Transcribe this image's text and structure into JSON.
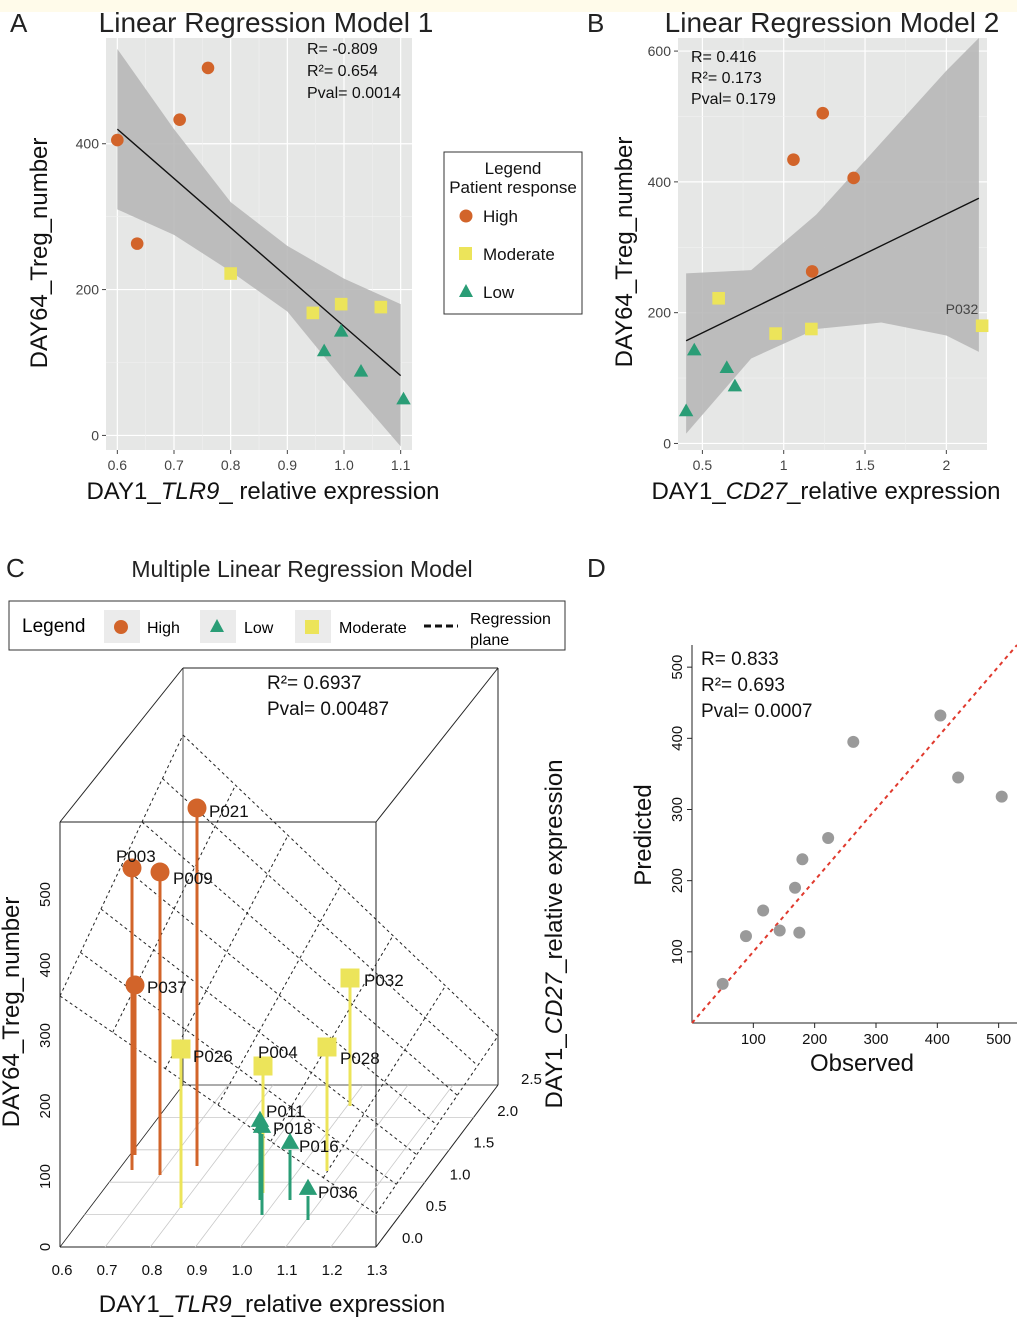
{
  "colors": {
    "high": "#d2642a",
    "moderate": "#ece45a",
    "low": "#2a9d76",
    "panel_bg": "#e6e7e6",
    "band": "#b4b4b4",
    "grey_point": "#9a9a9a",
    "identity_line": "#e03a2e",
    "top_strip": "#fffbea"
  },
  "panelA": {
    "letter": "A",
    "title": "Linear Regression Model 1",
    "stats": [
      "R= -0.809",
      "R²= 0.654",
      "Pval= 0.0014"
    ],
    "xlabel_pre": "DAY1_",
    "xlabel_gene": "TLR9",
    "xlabel_post": "_ relative expression",
    "ylabel": "DAY64_Treg_number"
  },
  "panelB": {
    "letter": "B",
    "title": "Linear Regression Model 2",
    "stats": [
      "R= 0.416",
      "R²= 0.173",
      "Pval= 0.179"
    ],
    "xlabel_pre": "DAY1_",
    "xlabel_gene": "CD27",
    "xlabel_post": "_relative expression",
    "ylabel": "DAY64_Treg_number",
    "point_label": "P032"
  },
  "legendAB": {
    "title1": "Legend",
    "title2": "Patient response",
    "items": [
      "High",
      "Moderate",
      "Low"
    ]
  },
  "panelC": {
    "letter": "C",
    "title": "Multiple Linear Regression Model",
    "stats": [
      "R²= 0.6937",
      "Pval= 0.00487"
    ],
    "legend": {
      "title": "Legend",
      "high": "High",
      "low": "Low",
      "moderate": "Moderate",
      "plane1": "Regression",
      "plane2": "plane"
    },
    "xlabel_pre": "DAY1_",
    "xlabel_gene": "TLR9",
    "xlabel_post": "_relative expression",
    "ylabel": "DAY64_Treg_number",
    "zlabel_pre": "DAY1_",
    "zlabel_gene": "CD27",
    "zlabel_post": "_relative expression"
  },
  "panelD": {
    "letter": "D",
    "stats": [
      "R= 0.833",
      "R²= 0.693",
      "Pval= 0.0007"
    ],
    "xlabel": "Observed",
    "ylabel": "Predicted"
  },
  "chart_data": [
    {
      "type": "scatter",
      "panel": "A",
      "title": "Linear Regression Model 1",
      "xlabel": "DAY1_TLR9_ relative expression",
      "ylabel": "DAY64_Treg_number",
      "xlim": [
        0.58,
        1.12
      ],
      "ylim": [
        -20,
        545
      ],
      "xticks": [
        0.6,
        0.7,
        0.8,
        0.9,
        1.0,
        1.1
      ],
      "xtick_labels": [
        "0.6",
        "0.7",
        "0.8",
        "0.9",
        "1.0",
        "1.1"
      ],
      "yticks": [
        0,
        200,
        400
      ],
      "grid": true,
      "series": [
        {
          "name": "High",
          "x": [
            0.6,
            0.635,
            0.71,
            0.76
          ],
          "y": [
            405,
            263,
            433,
            504
          ]
        },
        {
          "name": "Moderate",
          "x": [
            0.8,
            0.945,
            0.995,
            1.065
          ],
          "y": [
            222,
            168,
            180,
            176
          ]
        },
        {
          "name": "Low",
          "x": [
            0.965,
            0.995,
            1.03,
            1.105
          ],
          "y": [
            116,
            143,
            88,
            50
          ]
        }
      ],
      "regression": {
        "x": [
          0.6,
          1.1
        ],
        "y": [
          420,
          82
        ]
      },
      "band": {
        "x": [
          0.6,
          0.7,
          0.8,
          0.9,
          1.0,
          1.1
        ],
        "upper": [
          530,
          420,
          320,
          260,
          215,
          180
        ],
        "lower": [
          310,
          275,
          225,
          170,
          75,
          -15
        ]
      }
    },
    {
      "type": "scatter",
      "panel": "B",
      "title": "Linear Regression Model 2",
      "xlabel": "DAY1_CD27_relative expression",
      "ylabel": "DAY64_Treg_number",
      "xlim": [
        0.35,
        2.25
      ],
      "ylim": [
        -10,
        620
      ],
      "xticks": [
        0.5,
        1.0,
        1.5,
        2.0
      ],
      "xtick_labels": [
        "0.5",
        "1",
        "1.5",
        "2"
      ],
      "yticks": [
        0,
        200,
        400,
        600
      ],
      "grid": true,
      "series": [
        {
          "name": "High",
          "x": [
            1.06,
            1.175,
            1.24,
            1.43
          ],
          "y": [
            434,
            263,
            505,
            406
          ]
        },
        {
          "name": "Moderate",
          "x": [
            0.6,
            0.95,
            1.17,
            2.22
          ],
          "y": [
            222,
            168,
            175,
            180
          ]
        },
        {
          "name": "Low",
          "x": [
            0.4,
            0.45,
            0.65,
            0.7
          ],
          "y": [
            50,
            143,
            116,
            88
          ]
        }
      ],
      "regression": {
        "x": [
          0.4,
          2.2
        ],
        "y": [
          157,
          375
        ]
      },
      "band": {
        "x": [
          0.4,
          0.8,
          1.2,
          1.6,
          2.0,
          2.2
        ],
        "upper": [
          260,
          265,
          350,
          460,
          570,
          620
        ],
        "lower": [
          15,
          130,
          175,
          185,
          165,
          140
        ]
      }
    },
    {
      "type": "scatter",
      "panel": "C",
      "title": "Multiple Linear Regression Model",
      "xlabel": "DAY1_TLR9_relative expression",
      "ylabel": "DAY64_Treg_number",
      "zlabel": "DAY1_CD27_relative expression",
      "xticks": [
        "0.6",
        "0.7",
        "0.8",
        "0.9",
        "1.0",
        "1.1",
        "1.2",
        "1.3"
      ],
      "yticks": [
        "0",
        "100",
        "200",
        "300",
        "400",
        "500"
      ],
      "zticks": [
        "0.0",
        "0.5",
        "1.0",
        "1.5",
        "2.0",
        "2.5"
      ],
      "points": [
        {
          "label": "P021",
          "group": "High"
        },
        {
          "label": "P003",
          "group": "High"
        },
        {
          "label": "P009",
          "group": "High"
        },
        {
          "label": "P037",
          "group": "High"
        },
        {
          "label": "P032",
          "group": "Moderate"
        },
        {
          "label": "P026",
          "group": "Moderate"
        },
        {
          "label": "P004",
          "group": "Moderate"
        },
        {
          "label": "P028",
          "group": "Moderate"
        },
        {
          "label": "P011",
          "group": "Low"
        },
        {
          "label": "P018",
          "group": "Low"
        },
        {
          "label": "P016",
          "group": "Low"
        },
        {
          "label": "P036",
          "group": "Low"
        }
      ]
    },
    {
      "type": "scatter",
      "panel": "D",
      "xlabel": "Observed",
      "ylabel": "Predicted",
      "xlim": [
        0,
        530
      ],
      "ylim": [
        0,
        530
      ],
      "xticks": [
        100,
        200,
        300,
        400,
        500
      ],
      "yticks": [
        100,
        200,
        300,
        400,
        500
      ],
      "grid": false,
      "series": [
        {
          "name": "",
          "x": [
            50,
            88,
            116,
            143,
            168,
            175,
            180,
            222,
            263,
            405,
            434,
            505
          ],
          "y": [
            55,
            122,
            158,
            130,
            190,
            127,
            230,
            260,
            395,
            432,
            345,
            318
          ]
        }
      ],
      "identity_line": true
    }
  ]
}
